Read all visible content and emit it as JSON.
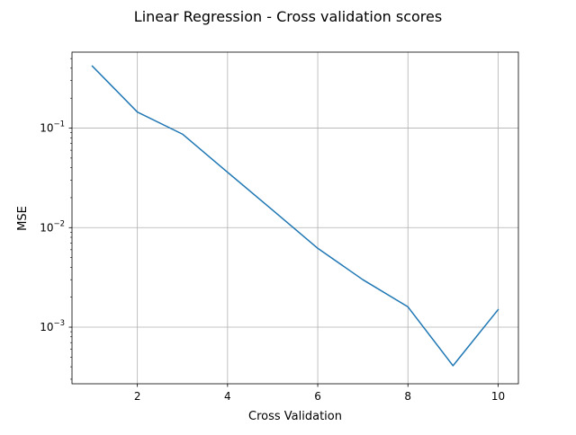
{
  "chart_data": {
    "type": "line",
    "title": "Linear Regression - Cross validation scores",
    "xlabel": "Cross Validation",
    "ylabel": "MSE",
    "yscale": "log",
    "grid": true,
    "xlim": [
      0.55,
      10.45
    ],
    "ylim": [
      0.00027,
      0.58
    ],
    "x_ticks": [
      2,
      4,
      6,
      8,
      10
    ],
    "y_major_ticks": [
      {
        "value": 0.001,
        "base": "10",
        "exp": "−3"
      },
      {
        "value": 0.01,
        "base": "10",
        "exp": "−2"
      },
      {
        "value": 0.1,
        "base": "10",
        "exp": "−1"
      }
    ],
    "series": [
      {
        "color": "#1f77b4",
        "x": [
          1,
          2,
          3,
          4,
          5,
          6,
          7,
          8,
          9,
          10
        ],
        "values": [
          0.42,
          0.145,
          0.087,
          0.036,
          0.015,
          0.0062,
          0.003,
          0.0016,
          0.00041,
          0.0015
        ]
      }
    ]
  }
}
